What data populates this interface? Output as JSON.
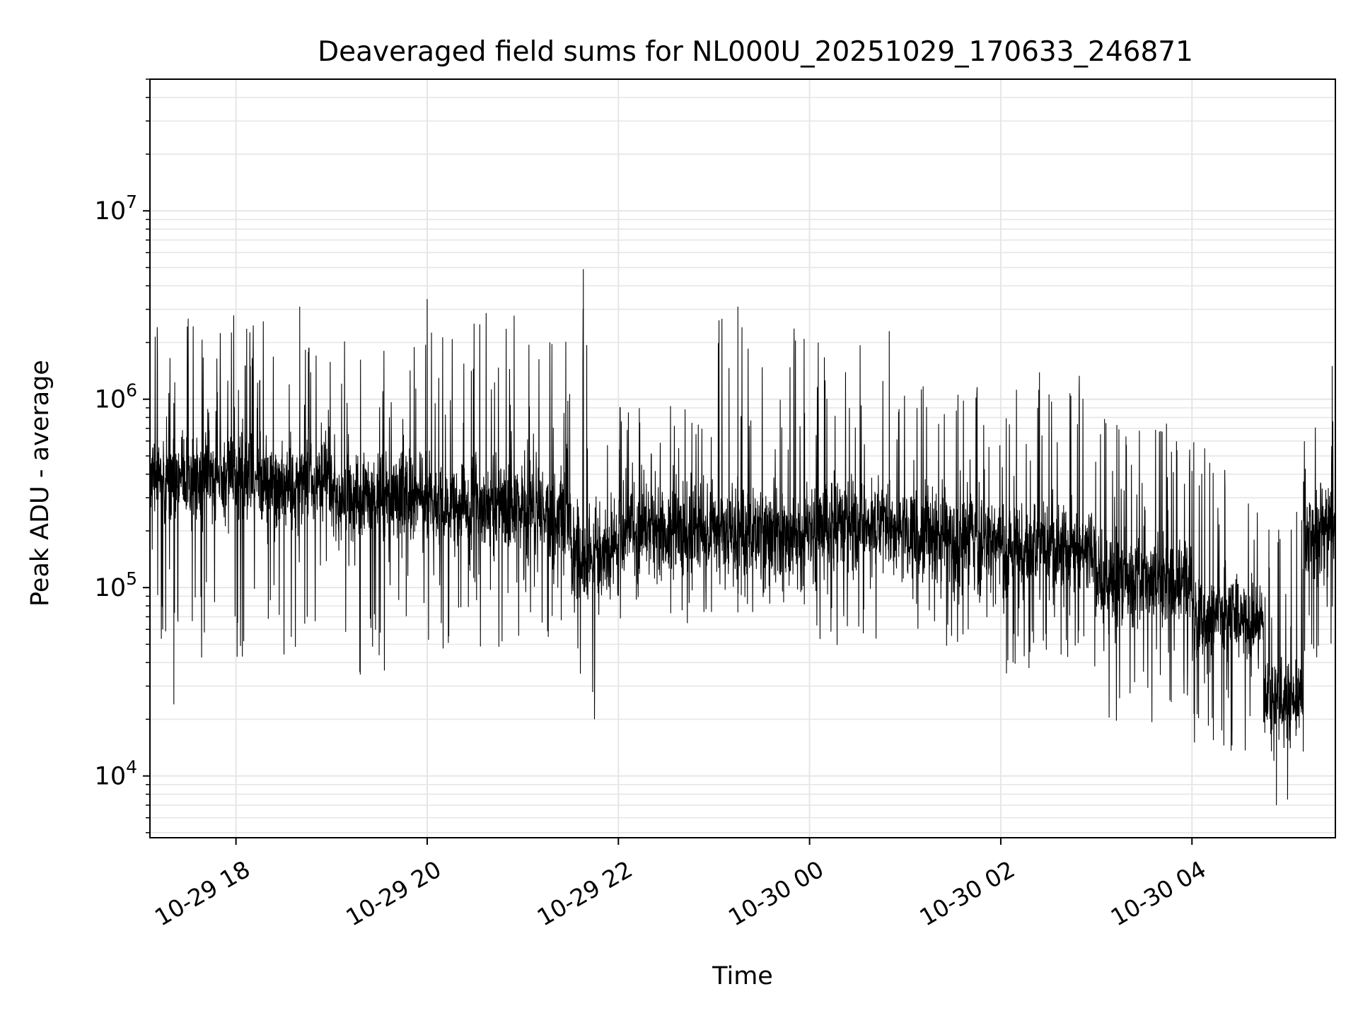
{
  "chart_data": {
    "type": "line",
    "title": "Deaveraged field sums for NL000U_20251029_170633_246871",
    "xlabel": "Time",
    "ylabel": "Peak ADU - average",
    "yscale": "log",
    "ylim": [
      4700,
      50000000
    ],
    "xlim": [
      "2025-10-29T17:06",
      "2025-10-30T05:30"
    ],
    "grid": true,
    "line_color": "#000000",
    "grid_color": "#e6e6e6",
    "x_ticks": [
      {
        "value": "2025-10-29T18:00",
        "label": "10-29 18"
      },
      {
        "value": "2025-10-29T20:00",
        "label": "10-29 20"
      },
      {
        "value": "2025-10-29T22:00",
        "label": "10-29 22"
      },
      {
        "value": "2025-10-30T00:00",
        "label": "10-30 00"
      },
      {
        "value": "2025-10-30T02:00",
        "label": "10-30 02"
      },
      {
        "value": "2025-10-30T04:00",
        "label": "10-30 04"
      }
    ],
    "y_ticks": [
      {
        "value": 10000,
        "base": "10",
        "exp": "4"
      },
      {
        "value": 100000,
        "base": "10",
        "exp": "5"
      },
      {
        "value": 1000000,
        "base": "10",
        "exp": "6"
      },
      {
        "value": 10000000,
        "base": "10",
        "exp": "7"
      }
    ],
    "segments": [
      {
        "t_start": "2025-10-29T17:06",
        "t_end": "2025-10-29T18:00",
        "median": 400000,
        "low": 35000,
        "high": 3200000
      },
      {
        "t_start": "2025-10-29T18:00",
        "t_end": "2025-10-29T19:00",
        "median": 370000,
        "low": 38000,
        "high": 3100000
      },
      {
        "t_start": "2025-10-29T19:00",
        "t_end": "2025-10-29T20:00",
        "median": 300000,
        "low": 30000,
        "high": 2600000
      },
      {
        "t_start": "2025-10-29T20:00",
        "t_end": "2025-10-29T21:00",
        "median": 270000,
        "low": 40000,
        "high": 3400000
      },
      {
        "t_start": "2025-10-29T21:00",
        "t_end": "2025-10-29T21:30",
        "median": 240000,
        "low": 45000,
        "high": 2500000
      },
      {
        "t_start": "2025-10-29T21:30",
        "t_end": "2025-10-29T21:55",
        "median": 150000,
        "low": 20000,
        "high": 4900000
      },
      {
        "t_start": "2025-10-29T21:55",
        "t_end": "2025-10-29T23:00",
        "median": 200000,
        "low": 60000,
        "high": 1000000
      },
      {
        "t_start": "2025-10-29T23:00",
        "t_end": "2025-10-30T00:00",
        "median": 200000,
        "low": 70000,
        "high": 3100000
      },
      {
        "t_start": "2025-10-30T00:00",
        "t_end": "2025-10-30T01:00",
        "median": 210000,
        "low": 40000,
        "high": 2300000
      },
      {
        "t_start": "2025-10-30T01:00",
        "t_end": "2025-10-30T02:00",
        "median": 180000,
        "low": 45000,
        "high": 1300000
      },
      {
        "t_start": "2025-10-30T02:00",
        "t_end": "2025-10-30T03:00",
        "median": 160000,
        "low": 30000,
        "high": 1600000
      },
      {
        "t_start": "2025-10-30T03:00",
        "t_end": "2025-10-30T04:00",
        "median": 110000,
        "low": 15000,
        "high": 950000
      },
      {
        "t_start": "2025-10-30T04:00",
        "t_end": "2025-10-30T04:45",
        "median": 70000,
        "low": 11000,
        "high": 1000000
      },
      {
        "t_start": "2025-10-30T04:45",
        "t_end": "2025-10-30T05:10",
        "median": 25000,
        "low": 7000,
        "high": 300000
      },
      {
        "t_start": "2025-10-30T05:10",
        "t_end": "2025-10-30T05:30",
        "median": 200000,
        "low": 35000,
        "high": 1500000
      }
    ],
    "peaks": [
      {
        "t": "2025-10-29T18:40",
        "value": 3100000
      },
      {
        "t": "2025-10-29T20:00",
        "value": 3400000
      },
      {
        "t": "2025-10-29T21:38",
        "value": 4900000
      },
      {
        "t": "2025-10-29T23:15",
        "value": 3100000
      },
      {
        "t": "2025-10-30T00:50",
        "value": 2300000
      },
      {
        "t": "2025-10-30T05:28",
        "value": 1500000
      }
    ],
    "troughs": [
      {
        "t": "2025-10-29T17:21",
        "value": 24000
      },
      {
        "t": "2025-10-29T21:45",
        "value": 20000
      },
      {
        "t": "2025-10-30T04:53",
        "value": 7000
      },
      {
        "t": "2025-10-30T05:00",
        "value": 7500
      }
    ]
  }
}
